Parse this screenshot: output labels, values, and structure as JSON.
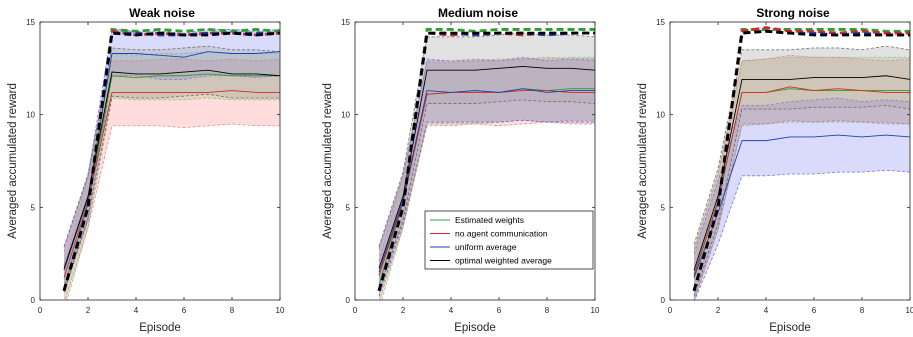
{
  "colors": {
    "estimated": "#2ca02c",
    "no_comm": "#d62728",
    "uniform": "#1f3fb4",
    "optimal": "#000000",
    "band_estimated": "#66cc66",
    "band_no_comm": "#ff6666",
    "band_uniform": "#5555ee",
    "band_optimal": "#555555",
    "band_optimal_fill": "#aaaaaa"
  },
  "legend": {
    "entries": [
      "Estimated weights",
      "no agent communication",
      "uniform average",
      "optimal weighted average"
    ]
  },
  "chart_data": [
    {
      "type": "line",
      "title": "Weak noise",
      "xlabel": "Episode",
      "ylabel": "Averaged accumulated reward",
      "xlim": [
        0,
        10
      ],
      "ylim": [
        0,
        15
      ],
      "xticks": [
        0,
        2,
        4,
        6,
        8,
        10
      ],
      "yticks": [
        0,
        5,
        10,
        15
      ],
      "x": [
        1,
        2,
        3,
        4,
        5,
        6,
        7,
        8,
        9,
        10
      ],
      "grid": false,
      "series": [
        {
          "key": "estimated",
          "name": "Estimated weights",
          "values": [
            0.6,
            5.2,
            12.1,
            12.0,
            12.1,
            12.1,
            12.2,
            12.1,
            12.1,
            12.1
          ],
          "lower": [
            -0.6,
            3.9,
            10.9,
            10.8,
            10.8,
            10.8,
            10.9,
            10.8,
            10.8,
            10.8
          ],
          "upper": [
            1.9,
            6.6,
            13.3,
            13.2,
            13.3,
            13.3,
            13.4,
            13.3,
            13.3,
            13.3
          ]
        },
        {
          "key": "no_comm",
          "name": "no agent communication",
          "values": [
            1.2,
            5.3,
            11.2,
            11.2,
            11.2,
            11.2,
            11.2,
            11.3,
            11.2,
            11.2
          ],
          "lower": [
            -0.2,
            3.9,
            9.4,
            9.4,
            9.4,
            9.3,
            9.4,
            9.5,
            9.4,
            9.4
          ],
          "upper": [
            2.6,
            6.7,
            12.9,
            12.9,
            13.0,
            13.0,
            12.9,
            13.0,
            12.9,
            13.0
          ]
        },
        {
          "key": "uniform",
          "name": "uniform average",
          "values": [
            1.6,
            5.5,
            13.3,
            13.3,
            13.2,
            13.1,
            13.4,
            13.3,
            13.3,
            13.4
          ],
          "lower": [
            0.4,
            4.3,
            12.1,
            12.1,
            11.9,
            11.9,
            12.1,
            12.1,
            12.0,
            12.1
          ],
          "upper": [
            2.8,
            6.7,
            14.6,
            14.5,
            14.5,
            14.4,
            14.6,
            14.6,
            14.5,
            14.6
          ]
        },
        {
          "key": "optimal",
          "name": "optimal weighted average",
          "values": [
            1.7,
            5.6,
            12.3,
            12.2,
            12.2,
            12.3,
            12.4,
            12.2,
            12.2,
            12.1
          ],
          "lower": [
            0.5,
            4.4,
            11.0,
            10.9,
            10.9,
            11.0,
            11.1,
            10.9,
            10.9,
            10.9
          ],
          "upper": [
            2.9,
            6.8,
            13.6,
            13.5,
            13.5,
            13.6,
            13.7,
            13.5,
            13.5,
            13.4
          ]
        }
      ],
      "dashed_series": [
        {
          "key": "estimated",
          "values": [
            0.5,
            5.0,
            14.6,
            14.5,
            14.6,
            14.5,
            14.6,
            14.5,
            14.6,
            14.5
          ]
        },
        {
          "key": "no_comm",
          "values": [
            0.5,
            5.0,
            14.5,
            14.3,
            14.4,
            14.3,
            14.4,
            14.4,
            14.3,
            14.4
          ]
        },
        {
          "key": "uniform",
          "values": [
            0.5,
            5.0,
            14.4,
            14.4,
            14.3,
            14.3,
            14.4,
            14.4,
            14.4,
            14.4
          ]
        },
        {
          "key": "optimal",
          "values": [
            0.5,
            5.0,
            14.4,
            14.3,
            14.4,
            14.3,
            14.3,
            14.4,
            14.3,
            14.4
          ]
        }
      ]
    },
    {
      "type": "line",
      "title": "Medium noise",
      "xlabel": "Episode",
      "ylabel": "Averaged accumulated reward",
      "xlim": [
        0,
        10
      ],
      "ylim": [
        0,
        15
      ],
      "xticks": [
        0,
        2,
        4,
        6,
        8,
        10
      ],
      "yticks": [
        0,
        5,
        10,
        15
      ],
      "x": [
        1,
        2,
        3,
        4,
        5,
        6,
        7,
        8,
        9,
        10
      ],
      "grid": false,
      "series": [
        {
          "key": "estimated",
          "name": "Estimated weights",
          "values": [
            0.8,
            5.3,
            11.1,
            11.2,
            11.3,
            11.2,
            11.4,
            11.3,
            11.4,
            11.4
          ],
          "lower": [
            -0.5,
            3.9,
            9.5,
            9.5,
            9.5,
            9.6,
            9.7,
            9.6,
            9.7,
            9.7
          ],
          "upper": [
            2.1,
            6.7,
            12.8,
            12.8,
            12.9,
            12.9,
            13.0,
            13.0,
            13.1,
            13.1
          ]
        },
        {
          "key": "no_comm",
          "name": "no agent communication",
          "values": [
            1.3,
            5.3,
            11.1,
            11.2,
            11.2,
            11.2,
            11.3,
            11.3,
            11.2,
            11.2
          ],
          "lower": [
            -0.1,
            3.9,
            9.4,
            9.4,
            9.5,
            9.4,
            9.5,
            9.6,
            9.5,
            9.5
          ],
          "upper": [
            2.7,
            6.7,
            12.9,
            12.9,
            12.9,
            13.0,
            13.0,
            13.1,
            13.0,
            12.9
          ]
        },
        {
          "key": "uniform",
          "name": "uniform average",
          "values": [
            1.5,
            5.4,
            11.3,
            11.2,
            11.3,
            11.2,
            11.4,
            11.2,
            11.3,
            11.3
          ],
          "lower": [
            0.2,
            4.1,
            9.6,
            9.6,
            9.6,
            9.6,
            9.7,
            9.6,
            9.6,
            9.6
          ],
          "upper": [
            2.8,
            6.7,
            13.0,
            12.9,
            13.0,
            12.9,
            13.1,
            12.9,
            13.0,
            13.0
          ]
        },
        {
          "key": "optimal",
          "name": "optimal weighted average",
          "values": [
            1.7,
            5.6,
            12.4,
            12.4,
            12.4,
            12.5,
            12.6,
            12.5,
            12.5,
            12.4
          ],
          "lower": [
            0.5,
            4.3,
            10.6,
            10.6,
            10.6,
            10.7,
            10.8,
            10.7,
            10.7,
            10.6
          ],
          "upper": [
            2.9,
            6.9,
            14.2,
            14.2,
            14.2,
            14.3,
            14.4,
            14.3,
            14.3,
            14.2
          ]
        }
      ],
      "dashed_series": [
        {
          "key": "estimated",
          "values": [
            0.5,
            5.0,
            14.6,
            14.6,
            14.5,
            14.6,
            14.6,
            14.6,
            14.6,
            14.6
          ]
        },
        {
          "key": "no_comm",
          "values": [
            0.5,
            5.0,
            14.4,
            14.3,
            14.4,
            14.4,
            14.3,
            14.4,
            14.4,
            14.4
          ]
        },
        {
          "key": "uniform",
          "values": [
            0.5,
            5.0,
            14.4,
            14.4,
            14.3,
            14.4,
            14.4,
            14.3,
            14.4,
            14.4
          ]
        },
        {
          "key": "optimal",
          "values": [
            0.5,
            5.0,
            14.4,
            14.4,
            14.4,
            14.4,
            14.4,
            14.4,
            14.4,
            14.4
          ]
        }
      ]
    },
    {
      "type": "line",
      "title": "Strong noise",
      "xlabel": "Episode",
      "ylabel": "Averaged accumulated reward",
      "xlim": [
        0,
        10
      ],
      "ylim": [
        0,
        15
      ],
      "xticks": [
        0,
        2,
        4,
        6,
        8,
        10
      ],
      "yticks": [
        0,
        5,
        10,
        15
      ],
      "x": [
        1,
        2,
        3,
        4,
        5,
        6,
        7,
        8,
        9,
        10
      ],
      "grid": false,
      "series": [
        {
          "key": "estimated",
          "name": "Estimated weights",
          "values": [
            1.4,
            5.3,
            11.2,
            11.2,
            11.4,
            11.3,
            11.3,
            11.3,
            11.3,
            11.3
          ],
          "lower": [
            0.0,
            3.8,
            9.4,
            9.5,
            9.6,
            9.6,
            9.6,
            9.6,
            9.6,
            9.5
          ],
          "upper": [
            2.8,
            6.8,
            12.9,
            13.0,
            13.1,
            13.1,
            13.1,
            13.1,
            13.1,
            13.1
          ]
        },
        {
          "key": "no_comm",
          "name": "no agent communication",
          "values": [
            1.3,
            5.3,
            11.2,
            11.2,
            11.5,
            11.3,
            11.4,
            11.3,
            11.2,
            11.2
          ],
          "lower": [
            -0.1,
            3.8,
            9.5,
            9.5,
            9.7,
            9.6,
            9.7,
            9.6,
            9.5,
            9.5
          ],
          "upper": [
            2.7,
            6.8,
            12.9,
            13.0,
            13.2,
            13.1,
            13.1,
            13.0,
            12.9,
            13.0
          ]
        },
        {
          "key": "uniform",
          "name": "uniform average",
          "values": [
            1.2,
            4.7,
            8.6,
            8.6,
            8.8,
            8.8,
            8.9,
            8.8,
            8.9,
            8.8
          ],
          "lower": [
            -0.1,
            3.0,
            6.7,
            6.7,
            6.8,
            6.8,
            6.9,
            6.9,
            7.0,
            6.9
          ],
          "upper": [
            2.5,
            6.4,
            10.5,
            10.5,
            10.7,
            10.8,
            10.9,
            10.7,
            10.8,
            10.7
          ]
        },
        {
          "key": "optimal",
          "name": "optimal weighted average",
          "values": [
            1.6,
            5.6,
            11.9,
            11.9,
            11.9,
            12.0,
            12.0,
            12.0,
            12.1,
            11.9
          ],
          "lower": [
            0.2,
            4.1,
            10.3,
            10.3,
            10.3,
            10.4,
            10.4,
            10.4,
            10.5,
            10.3
          ],
          "upper": [
            3.0,
            7.1,
            13.5,
            13.5,
            13.5,
            13.6,
            13.6,
            13.5,
            13.7,
            13.5
          ]
        }
      ],
      "dashed_series": [
        {
          "key": "estimated",
          "values": [
            0.5,
            5.0,
            14.6,
            14.6,
            14.6,
            14.6,
            14.6,
            14.6,
            14.5,
            14.5
          ]
        },
        {
          "key": "no_comm",
          "values": [
            0.5,
            5.0,
            14.5,
            14.7,
            14.5,
            14.5,
            14.4,
            14.5,
            14.4,
            14.4
          ]
        },
        {
          "key": "uniform",
          "values": [
            0.5,
            5.0,
            14.4,
            14.5,
            14.4,
            14.4,
            14.3,
            14.4,
            14.3,
            14.3
          ]
        },
        {
          "key": "optimal",
          "values": [
            0.5,
            5.0,
            14.4,
            14.5,
            14.4,
            14.3,
            14.3,
            14.3,
            14.3,
            14.3
          ]
        }
      ]
    }
  ]
}
